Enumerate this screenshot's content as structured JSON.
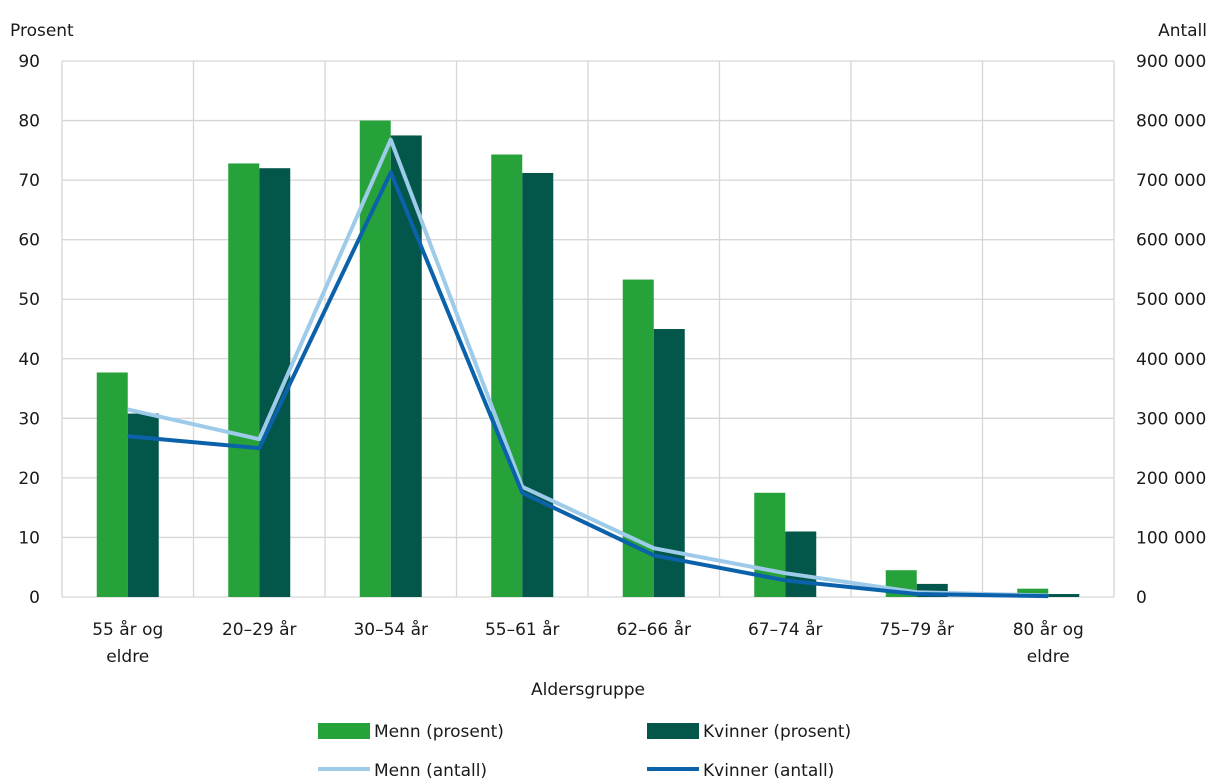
{
  "chart_data": {
    "type": "bar",
    "categories": [
      [
        "55 år og",
        "eldre"
      ],
      [
        "20–29 år"
      ],
      [
        "30–54 år"
      ],
      [
        "55–61 år"
      ],
      [
        "62–66 år"
      ],
      [
        "67–74 år"
      ],
      [
        "75–79 år"
      ],
      [
        "80 år og",
        "eldre"
      ]
    ],
    "bar_series": [
      {
        "name": "Menn (prosent)",
        "color": "#27a23a",
        "values": [
          37.7,
          72.8,
          80.0,
          74.3,
          53.3,
          17.5,
          4.5,
          1.4
        ]
      },
      {
        "name": "Kvinner (prosent)",
        "color": "#02574a",
        "values": [
          30.8,
          72.0,
          77.5,
          71.2,
          45.0,
          11.0,
          2.2,
          0.5
        ]
      }
    ],
    "line_series": [
      {
        "name": "Menn (antall)",
        "color": "#9ecbe9",
        "values": [
          315000,
          265000,
          768000,
          185000,
          82000,
          40000,
          8000,
          2500
        ]
      },
      {
        "name": "Kvinner (antall)",
        "color": "#0b62aa",
        "values": [
          270000,
          250000,
          713000,
          175000,
          70000,
          28000,
          5000,
          1500
        ]
      }
    ],
    "y_left": {
      "label": "Prosent",
      "ylim": [
        0,
        90
      ],
      "ticks": [
        "0",
        "10",
        "20",
        "30",
        "40",
        "50",
        "60",
        "70",
        "80",
        "90"
      ]
    },
    "y_right": {
      "label": "Antall",
      "ylim": [
        0,
        900000
      ],
      "ticks": [
        "0",
        "100 000",
        "200 000",
        "300 000",
        "400 000",
        "500 000",
        "600 000",
        "700 000",
        "800 000",
        "900 000"
      ]
    },
    "xlabel": "Aldersgruppe",
    "grid": true,
    "legend": "bottom"
  }
}
